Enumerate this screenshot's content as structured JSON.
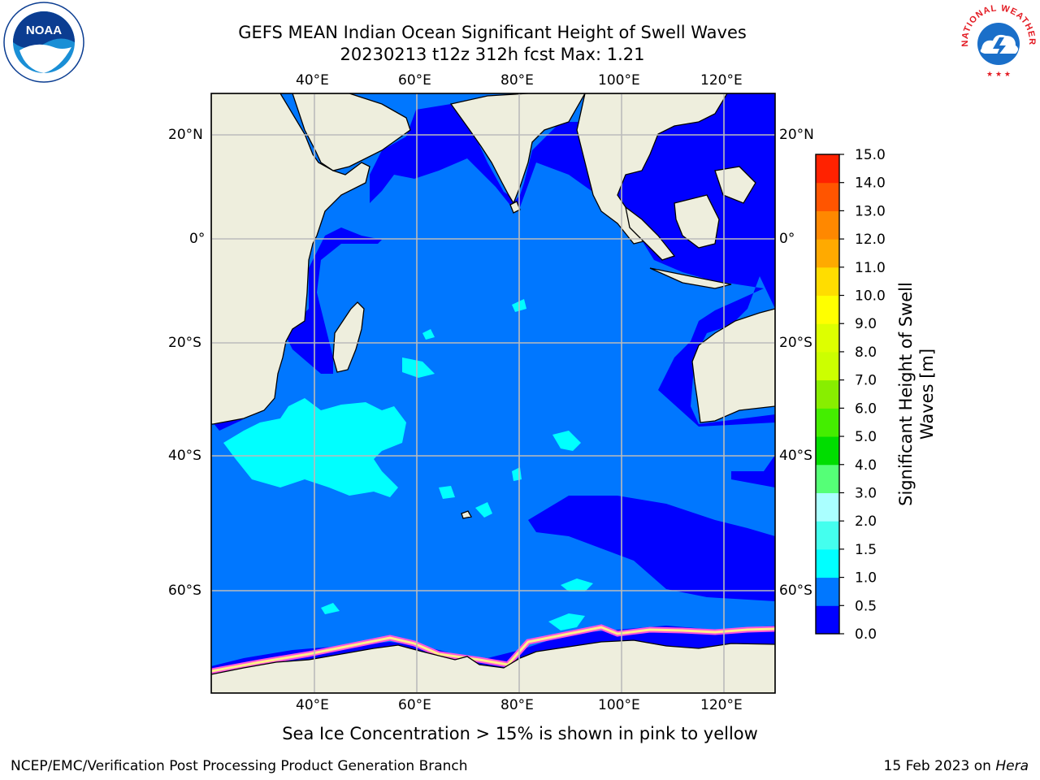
{
  "header": {
    "title": "GEFS MEAN Indian Ocean Significant Height of Swell Waves",
    "subtitle": "20230213 t12z 312h fcst   Max: 1.21"
  },
  "logos": {
    "left": "noaa-logo",
    "left_text": "NOAA",
    "right": "national-weather-service-logo",
    "right_text": "NATIONAL WEATHER SERVICE"
  },
  "map": {
    "lon_ticks_top": [
      "40°E",
      "60°E",
      "80°E",
      "100°E",
      "120°E"
    ],
    "lon_ticks_bottom": [
      "40°E",
      "60°E",
      "80°E",
      "100°E",
      "120°E"
    ],
    "lat_ticks_left": [
      "20°N",
      "0°",
      "20°S",
      "40°S",
      "60°S"
    ],
    "lat_ticks_right": [
      "20°N",
      "0°",
      "20°S",
      "40°S",
      "60°S"
    ],
    "lon_range": [
      20,
      130
    ],
    "lat_range": [
      -73,
      25
    ],
    "colors": {
      "land": "#eeeedd",
      "ocean_main": "#0077ff",
      "ocean_calm": "#0000ff",
      "swell_high": "#00ffff",
      "grid": "#bbbbbb"
    }
  },
  "colorbar": {
    "label": "Significant Height of Swell Waves [m]",
    "ticks": [
      "0.0",
      "0.5",
      "1.0",
      "1.5",
      "2.0",
      "3.0",
      "4.0",
      "5.0",
      "6.0",
      "7.0",
      "8.0",
      "9.0",
      "10.0",
      "11.0",
      "12.0",
      "13.0",
      "14.0",
      "15.0"
    ],
    "colors": [
      "#0000ff",
      "#0077ff",
      "#00ffff",
      "#44ffee",
      "#aaffff",
      "#55ff77",
      "#00dd00",
      "#44ee00",
      "#88ee00",
      "#ccff00",
      "#ddff00",
      "#ffff00",
      "#ffdd00",
      "#ffaa00",
      "#ff8800",
      "#ff5500",
      "#ff2200",
      "#ff0000"
    ]
  },
  "caption": "Sea Ice Concentration > 15% is shown in pink to yellow",
  "footer": {
    "left": "NCEP/EMC/Verification Post Processing Product Generation Branch",
    "right_prefix": "15 Feb 2023 on",
    "right_machine": "Hera"
  }
}
